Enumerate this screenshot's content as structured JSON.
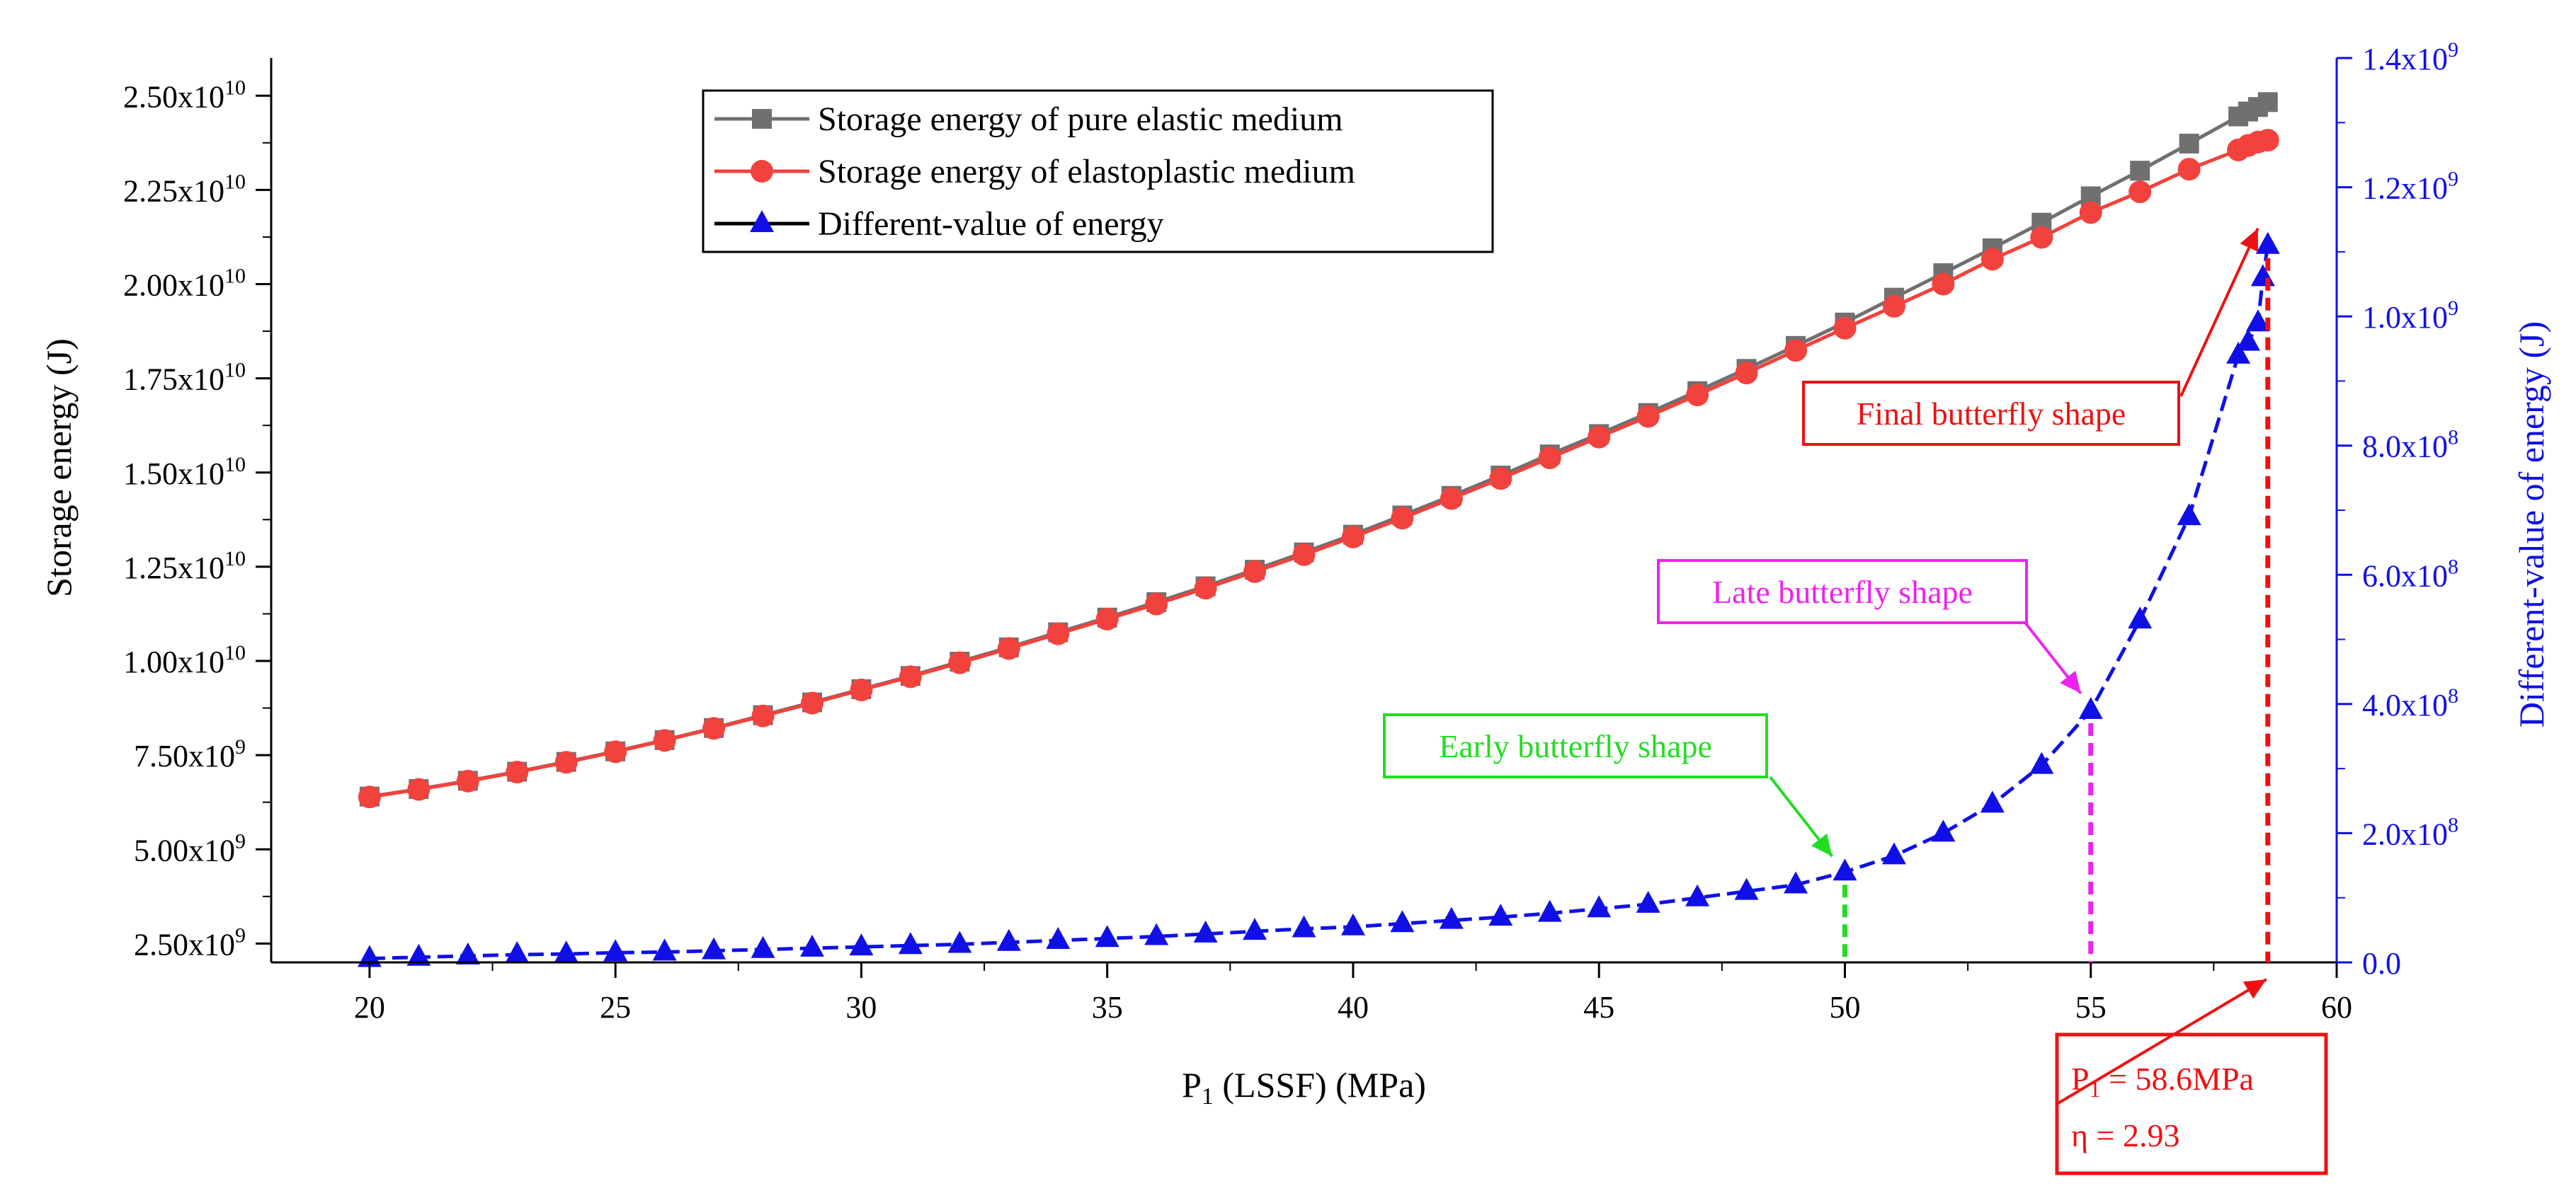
{
  "chart_data": {
    "type": "line",
    "xlabel_main": "P",
    "xlabel_sub": "1",
    "xlabel_rest": " (LSSF) (MPa)",
    "ylabel_left": "Storage energy (J)",
    "ylabel_right": "Different-value of  energy (J)",
    "xlim": [
      18,
      60
    ],
    "ylim_left": [
      2000000000,
      26000000000
    ],
    "ylim_right": [
      0,
      1400000000
    ],
    "x_ticks": [
      20,
      25,
      30,
      35,
      40,
      45,
      50,
      55,
      60
    ],
    "left_ticks": [
      {
        "value": 2500000000,
        "mant": "2.50x10",
        "exp": "9"
      },
      {
        "value": 5000000000,
        "mant": "5.00x10",
        "exp": "9"
      },
      {
        "value": 7500000000,
        "mant": "7.50x10",
        "exp": "9"
      },
      {
        "value": 10000000000,
        "mant": "1.00x10",
        "exp": "10"
      },
      {
        "value": 12500000000,
        "mant": "1.25x10",
        "exp": "10"
      },
      {
        "value": 15000000000,
        "mant": "1.50x10",
        "exp": "10"
      },
      {
        "value": 17500000000,
        "mant": "1.75x10",
        "exp": "10"
      },
      {
        "value": 20000000000,
        "mant": "2.00x10",
        "exp": "10"
      },
      {
        "value": 22500000000,
        "mant": "2.25x10",
        "exp": "10"
      },
      {
        "value": 25000000000,
        "mant": "2.50x10",
        "exp": "10"
      }
    ],
    "right_ticks": [
      {
        "value": 0,
        "mant": "0.0",
        "exp": ""
      },
      {
        "value": 200000000,
        "mant": "2.0x10",
        "exp": "8"
      },
      {
        "value": 400000000,
        "mant": "4.0x10",
        "exp": "8"
      },
      {
        "value": 600000000,
        "mant": "6.0x10",
        "exp": "8"
      },
      {
        "value": 800000000,
        "mant": "8.0x10",
        "exp": "8"
      },
      {
        "value": 1000000000,
        "mant": "1.0x10",
        "exp": "9"
      },
      {
        "value": 1200000000,
        "mant": "1.2x10",
        "exp": "9"
      },
      {
        "value": 1400000000,
        "mant": "1.4x10",
        "exp": "9"
      }
    ],
    "series": [
      {
        "name": "Storage energy of pure elastic medium",
        "axis": "left",
        "color": "#707070",
        "marker": "square",
        "x": [
          20,
          21,
          22,
          23,
          24,
          25,
          26,
          27,
          28,
          29,
          30,
          31,
          32,
          33,
          34,
          35,
          36,
          37,
          38,
          39,
          40,
          41,
          42,
          43,
          44,
          45,
          46,
          47,
          48,
          49,
          50,
          51,
          52,
          53,
          54,
          55,
          56,
          57,
          58,
          58.2,
          58.4,
          58.6
        ],
        "values": [
          6400000000,
          6600000000,
          6820000000,
          7060000000,
          7320000000,
          7600000000,
          7900000000,
          8220000000,
          8560000000,
          8900000000,
          9250000000,
          9600000000,
          9980000000,
          10360000000,
          10760000000,
          11150000000,
          11560000000,
          11980000000,
          12420000000,
          12880000000,
          13350000000,
          13860000000,
          14380000000,
          14920000000,
          15480000000,
          16020000000,
          16580000000,
          17160000000,
          17750000000,
          18360000000,
          18980000000,
          19640000000,
          20290000000,
          20950000000,
          21630000000,
          22330000000,
          23010000000,
          23730000000,
          24450000000,
          24580000000,
          24700000000,
          24830000000
        ]
      },
      {
        "name": "Storage energy of elastoplastic medium",
        "axis": "left",
        "color": "#f2423d",
        "marker": "circle",
        "x": [
          20,
          21,
          22,
          23,
          24,
          25,
          26,
          27,
          28,
          29,
          30,
          31,
          32,
          33,
          34,
          35,
          36,
          37,
          38,
          39,
          40,
          41,
          42,
          43,
          44,
          45,
          46,
          47,
          48,
          49,
          50,
          51,
          52,
          53,
          54,
          55,
          56,
          57,
          58,
          58.2,
          58.4,
          58.6
        ],
        "values": [
          6390000000,
          6590000000,
          6810000000,
          7050000000,
          7310000000,
          7590000000,
          7890000000,
          8210000000,
          8540000000,
          8880000000,
          9230000000,
          9580000000,
          9950000000,
          10330000000,
          10720000000,
          11110000000,
          11510000000,
          11930000000,
          12370000000,
          12820000000,
          13290000000,
          13790000000,
          14310000000,
          14840000000,
          15390000000,
          15940000000,
          16490000000,
          17060000000,
          17640000000,
          18240000000,
          18830000000,
          19410000000,
          20000000000,
          20660000000,
          21240000000,
          21900000000,
          22450000000,
          23050000000,
          23560000000,
          23680000000,
          23770000000,
          23820000000
        ]
      },
      {
        "name": "Different-value of energy",
        "axis": "right",
        "color": "#1010e6",
        "marker": "triangle",
        "x": [
          20,
          21,
          22,
          23,
          24,
          25,
          26,
          27,
          28,
          29,
          30,
          31,
          32,
          33,
          34,
          35,
          36,
          37,
          38,
          39,
          40,
          41,
          42,
          43,
          44,
          45,
          46,
          47,
          48,
          49,
          50,
          51,
          52,
          53,
          54,
          55,
          56,
          57,
          58,
          58.2,
          58.4,
          58.5,
          58.6
        ],
        "values": [
          6000000,
          8000000,
          10000000,
          12000000,
          13000000,
          15000000,
          16000000,
          18000000,
          20000000,
          22000000,
          24000000,
          26000000,
          28000000,
          31000000,
          34000000,
          37000000,
          40000000,
          44000000,
          48000000,
          52000000,
          55000000,
          60000000,
          65000000,
          70000000,
          76000000,
          83000000,
          90000000,
          100000000,
          110000000,
          120000000,
          140000000,
          165000000,
          200000000,
          245000000,
          305000000,
          390000000,
          530000000,
          690000000,
          940000000,
          960000000,
          990000000,
          1060000000,
          1110000000
        ]
      }
    ],
    "annotations": {
      "early": {
        "label": "Early butterfly shape",
        "x": 50,
        "color": "#22dd22"
      },
      "late": {
        "label": "Late butterfly shape",
        "x": 55,
        "color": "#ee22ee"
      },
      "final": {
        "label": "Final butterfly shape",
        "x": 58.6,
        "color": "#ee1111"
      },
      "result_line1_main": "P",
      "result_line1_sub": "1",
      "result_line1_rest": " = 58.6MPa",
      "result_line2": "η = 2.93"
    }
  }
}
